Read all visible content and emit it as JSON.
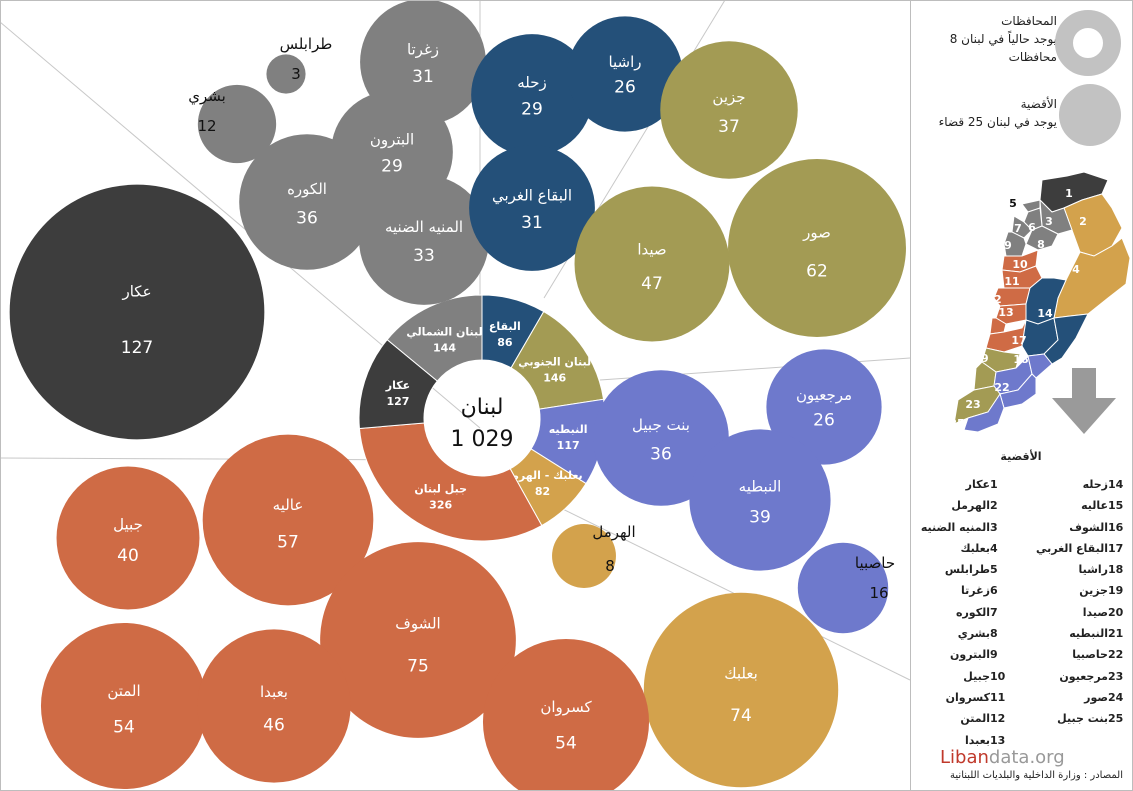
{
  "chart_data": {
    "type": "bubble-donut",
    "title": "",
    "center": {
      "label": "لبنان",
      "value": "1 029"
    },
    "colors": {
      "akkar": "#3d3d3d",
      "north": "#808080",
      "bekaa": "#245079",
      "south": "#a39b54",
      "nabatieh": "#6e79cc",
      "baalbek_hermel": "#d3a24c",
      "mount_lebanon": "#cf6b45"
    },
    "governorates": [
      {
        "name": "البقاع",
        "value": 86,
        "color_key": "bekaa"
      },
      {
        "name": "لبنان الجنوبي",
        "value": 146,
        "color_key": "south"
      },
      {
        "name": "النبطيه",
        "value": 117,
        "color_key": "nabatieh"
      },
      {
        "name": "بعلبك - الهرمل",
        "value": 82,
        "color_key": "baalbek_hermel"
      },
      {
        "name": "جبل لبنان",
        "value": 326,
        "color_key": "mount_lebanon"
      },
      {
        "name": "عكار",
        "value": 127,
        "color_key": "akkar"
      },
      {
        "name": "لبنان الشمالي",
        "value": 144,
        "color_key": "north"
      }
    ],
    "districts": [
      {
        "name": "عكار",
        "value": 127,
        "color_key": "akkar"
      },
      {
        "name": "طرابلس",
        "value": 3,
        "color_key": "north"
      },
      {
        "name": "بشري",
        "value": 12,
        "color_key": "north"
      },
      {
        "name": "زغرتا",
        "value": 31,
        "color_key": "north"
      },
      {
        "name": "البترون",
        "value": 29,
        "color_key": "north"
      },
      {
        "name": "الكوره",
        "value": 36,
        "color_key": "north"
      },
      {
        "name": "المنيه الضنيه",
        "value": 33,
        "color_key": "north"
      },
      {
        "name": "زحله",
        "value": 29,
        "color_key": "bekaa"
      },
      {
        "name": "راشيا",
        "value": 26,
        "color_key": "bekaa"
      },
      {
        "name": "البقاع الغربي",
        "value": 31,
        "color_key": "bekaa"
      },
      {
        "name": "جزين",
        "value": 37,
        "color_key": "south"
      },
      {
        "name": "صيدا",
        "value": 47,
        "color_key": "south"
      },
      {
        "name": "صور",
        "value": 62,
        "color_key": "south"
      },
      {
        "name": "مرجعيون",
        "value": 26,
        "color_key": "nabatieh"
      },
      {
        "name": "بنت جبيل",
        "value": 36,
        "color_key": "nabatieh"
      },
      {
        "name": "النبطيه",
        "value": 39,
        "color_key": "nabatieh"
      },
      {
        "name": "حاصبيا",
        "value": 16,
        "color_key": "nabatieh"
      },
      {
        "name": "الهرمل",
        "value": 8,
        "color_key": "baalbek_hermel"
      },
      {
        "name": "بعلبك",
        "value": 74,
        "color_key": "baalbek_hermel"
      },
      {
        "name": "عاليه",
        "value": 57,
        "color_key": "mount_lebanon"
      },
      {
        "name": "جبيل",
        "value": 40,
        "color_key": "mount_lebanon"
      },
      {
        "name": "الشوف",
        "value": 75,
        "color_key": "mount_lebanon"
      },
      {
        "name": "المتن",
        "value": 54,
        "color_key": "mount_lebanon"
      },
      {
        "name": "بعبدا",
        "value": 46,
        "color_key": "mount_lebanon"
      },
      {
        "name": "كسروان",
        "value": 54,
        "color_key": "mount_lebanon"
      }
    ]
  },
  "legend": {
    "governorates_title": "المحافظات",
    "governorates_text_1": "يوجد حالياً في لبنان 8",
    "governorates_text_2": "محافظات",
    "districts_title": "الأقضية",
    "districts_text": "يوجد في لبنان 25 قضاء"
  },
  "map": {
    "regions": [
      {
        "id": "1",
        "color_key": "akkar"
      },
      {
        "id": "2",
        "color_key": "baalbek_hermel"
      },
      {
        "id": "3",
        "color_key": "north"
      },
      {
        "id": "4",
        "color_key": "baalbek_hermel"
      },
      {
        "id": "5",
        "color_key": "north"
      },
      {
        "id": "6",
        "color_key": "north"
      },
      {
        "id": "7",
        "color_key": "north"
      },
      {
        "id": "8",
        "color_key": "north"
      },
      {
        "id": "9",
        "color_key": "north"
      },
      {
        "id": "10",
        "color_key": "mount_lebanon"
      },
      {
        "id": "11",
        "color_key": "mount_lebanon"
      },
      {
        "id": "12",
        "color_key": "mount_lebanon"
      },
      {
        "id": "13",
        "color_key": "mount_lebanon"
      },
      {
        "id": "14",
        "color_key": "bekaa"
      },
      {
        "id": "15",
        "color_key": "mount_lebanon"
      },
      {
        "id": "16",
        "color_key": "mount_lebanon"
      },
      {
        "id": "17",
        "color_key": "bekaa"
      },
      {
        "id": "18",
        "color_key": "bekaa"
      },
      {
        "id": "19",
        "color_key": "south"
      },
      {
        "id": "20",
        "color_key": "south"
      },
      {
        "id": "21",
        "color_key": "nabatieh"
      },
      {
        "id": "22",
        "color_key": "nabatieh"
      },
      {
        "id": "23",
        "color_key": "nabatieh"
      },
      {
        "id": "24",
        "color_key": "south"
      },
      {
        "id": "25",
        "color_key": "nabatieh"
      }
    ]
  },
  "district_index_title": "الأقضية",
  "district_index": [
    {
      "n": "1",
      "name": "عكار"
    },
    {
      "n": "2",
      "name": "الهرمل"
    },
    {
      "n": "3",
      "name": "المنيه الضنيه"
    },
    {
      "n": "4",
      "name": "بعلبك"
    },
    {
      "n": "5",
      "name": "طرابلس"
    },
    {
      "n": "6",
      "name": "زغرتا"
    },
    {
      "n": "7",
      "name": "الكوره"
    },
    {
      "n": "8",
      "name": "بشري"
    },
    {
      "n": "9",
      "name": "البترون"
    },
    {
      "n": "10",
      "name": "جبيل"
    },
    {
      "n": "11",
      "name": "كسروان"
    },
    {
      "n": "12",
      "name": "المتن"
    },
    {
      "n": "13",
      "name": "بعبدا"
    },
    {
      "n": "14",
      "name": "زحله"
    },
    {
      "n": "15",
      "name": "عاليه"
    },
    {
      "n": "16",
      "name": "الشوف"
    },
    {
      "n": "17",
      "name": "البقاع الغربي"
    },
    {
      "n": "18",
      "name": "راشيا"
    },
    {
      "n": "19",
      "name": "جزين"
    },
    {
      "n": "20",
      "name": "صيدا"
    },
    {
      "n": "21",
      "name": "النبطيه"
    },
    {
      "n": "22",
      "name": "حاصبيا"
    },
    {
      "n": "23",
      "name": "مرجعيون"
    },
    {
      "n": "24",
      "name": "صور"
    },
    {
      "n": "25",
      "name": "بنت جبيل"
    }
  ],
  "brand": {
    "name_a": "Liban",
    "name_b": "data.org"
  },
  "source": "المصادر : وزارة الداخلية والبلديات اللبنانية"
}
